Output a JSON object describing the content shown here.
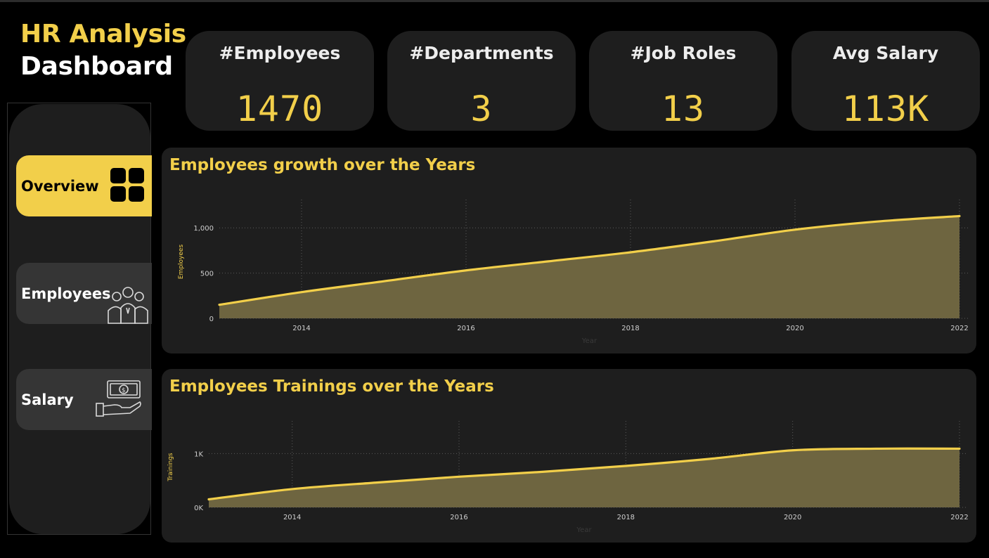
{
  "header": {
    "title_line1": "HR Analysis",
    "title_line2": "Dashboard"
  },
  "kpis": [
    {
      "label": "#Employees",
      "value": "1470"
    },
    {
      "label": "#Departments",
      "value": "3"
    },
    {
      "label": "#Job Roles",
      "value": "13"
    },
    {
      "label": "Avg Salary",
      "value": "113K"
    }
  ],
  "nav": [
    {
      "label": "Overview",
      "icon": "grid-icon",
      "active": true
    },
    {
      "label": "Employees",
      "icon": "people-icon",
      "active": false
    },
    {
      "label": "Salary",
      "icon": "money-hand-icon",
      "active": false
    }
  ],
  "colors": {
    "accent": "#f2cf4a",
    "panel": "#1e1e1e",
    "area_fill": "#6e6540",
    "background": "#000000"
  },
  "charts": {
    "growth_title": "Employees growth over the Years",
    "trainings_title": "Employees Trainings over the Years"
  },
  "chart_data": [
    {
      "type": "area",
      "title": "Employees growth over the Years",
      "xlabel": "Year",
      "ylabel": "Employees",
      "x": [
        2013,
        2014,
        2015,
        2016,
        2017,
        2018,
        2019,
        2020,
        2021,
        2022
      ],
      "y": [
        150,
        290,
        410,
        530,
        630,
        730,
        850,
        980,
        1070,
        1130
      ],
      "xticks": [
        "2014",
        "2016",
        "2018",
        "2020",
        "2022"
      ],
      "yticks": [
        "0",
        "500",
        "1,000"
      ],
      "xlim": [
        2013,
        2022
      ],
      "ylim": [
        0,
        1250
      ],
      "grid": true
    },
    {
      "type": "area",
      "title": "Employees Trainings over the Years",
      "xlabel": "Year",
      "ylabel": "Trainings",
      "x": [
        2013,
        2014,
        2015,
        2016,
        2017,
        2018,
        2019,
        2020,
        2021,
        2022
      ],
      "y": [
        150,
        340,
        460,
        570,
        660,
        770,
        900,
        1060,
        1090,
        1090
      ],
      "xticks": [
        "2014",
        "2016",
        "2018",
        "2020",
        "2022"
      ],
      "yticks": [
        "0K",
        "1K"
      ],
      "xlim": [
        2013,
        2022
      ],
      "ylim": [
        0,
        1500
      ],
      "grid": true
    }
  ]
}
